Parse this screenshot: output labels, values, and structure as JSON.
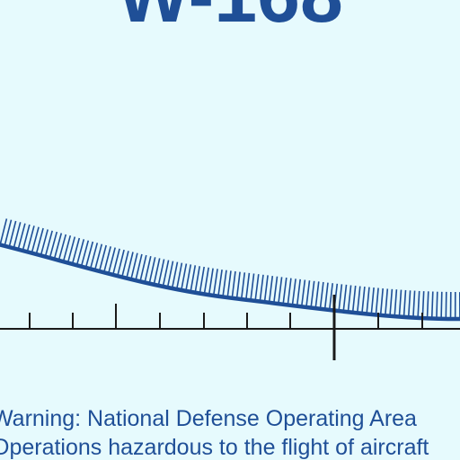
{
  "area_label": "W-168",
  "warning": {
    "line1": "Warning: National Defense Operating Area",
    "line2": "Operations hazardous to the flight of aircraft"
  },
  "colors": {
    "background": "#e6fafd",
    "boundary": "#1f4f97",
    "hatch": "#1f4f97",
    "scale": "#1a1a1a",
    "text": "#1f4f97"
  },
  "features": {
    "restricted_boundary": "curved boundary line with inward hatching",
    "scale_bar": "tick scale with a major crossing mark"
  }
}
